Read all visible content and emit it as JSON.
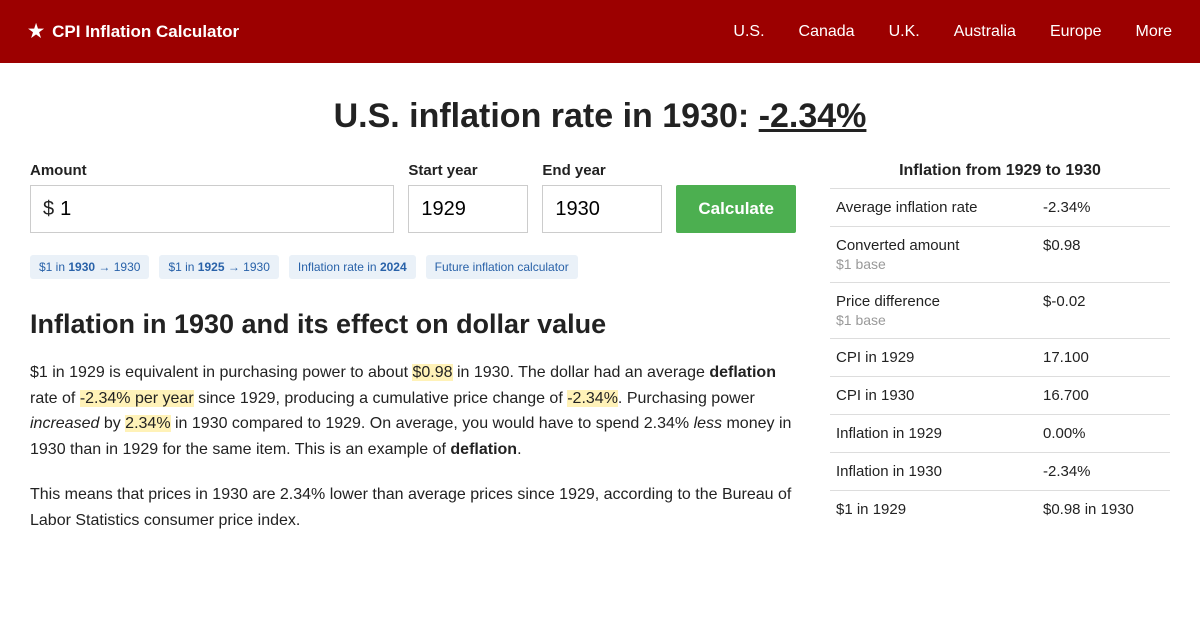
{
  "brand": {
    "icon": "★",
    "name": "CPI Inflation Calculator"
  },
  "nav": [
    "U.S.",
    "Canada",
    "U.K.",
    "Australia",
    "Europe",
    "More"
  ],
  "title": {
    "prefix": "U.S. inflation rate in 1930: ",
    "rate": "-2.34%"
  },
  "form": {
    "amount_label": "Amount",
    "currency": "$",
    "amount_value": "1",
    "start_label": "Start year",
    "start_value": "1929",
    "end_label": "End year",
    "end_value": "1930",
    "button": "Calculate"
  },
  "tags": {
    "t0a": "$1 in ",
    "t0b": "1930",
    "t0c": " → 1930",
    "t1a": "$1 in ",
    "t1b": "1925",
    "t1c": " → 1930",
    "t2a": "Inflation rate in ",
    "t2b": "2024",
    "t3": "Future inflation calculator"
  },
  "section_heading": "Inflation in 1930 and its effect on dollar value",
  "para1": {
    "a": "$1 in 1929 is equivalent in purchasing power to about ",
    "hl1": "$0.98",
    "b": " in 1930. The dollar had an average ",
    "bold1": "deflation",
    "c": " rate of ",
    "hl2": "-2.34% per year",
    "d": " since 1929, producing a cumulative price change of ",
    "hl3": "-2.34%",
    "e": ". Purchasing power ",
    "em1": "increased",
    "f": " by ",
    "hl4": "2.34%",
    "g": " in 1930 compared to 1929. On average, you would have to spend 2.34% ",
    "em2": "less",
    "h": " money in 1930 than in 1929 for the same item. This is an example of ",
    "bold2": "deflation",
    "i": "."
  },
  "para2": "This means that prices in 1930 are 2.34% lower than average prices since 1929, according to the Bureau of Labor Statistics consumer price index.",
  "sidebar": {
    "title": "Inflation from 1929 to 1930",
    "rows": [
      {
        "label": "Average inflation rate",
        "sub": "",
        "value": "-2.34%"
      },
      {
        "label": "Converted amount",
        "sub": "$1 base",
        "value": "$0.98"
      },
      {
        "label": "Price difference",
        "sub": "$1 base",
        "value": "$-0.02"
      },
      {
        "label": "CPI in 1929",
        "sub": "",
        "value": "17.100"
      },
      {
        "label": "CPI in 1930",
        "sub": "",
        "value": "16.700"
      },
      {
        "label": "Inflation in 1929",
        "sub": "",
        "value": "0.00%"
      },
      {
        "label": "Inflation in 1930",
        "sub": "",
        "value": "-2.34%"
      },
      {
        "label": "$1 in 1929",
        "sub": "",
        "value": "$0.98 in 1930"
      }
    ]
  }
}
